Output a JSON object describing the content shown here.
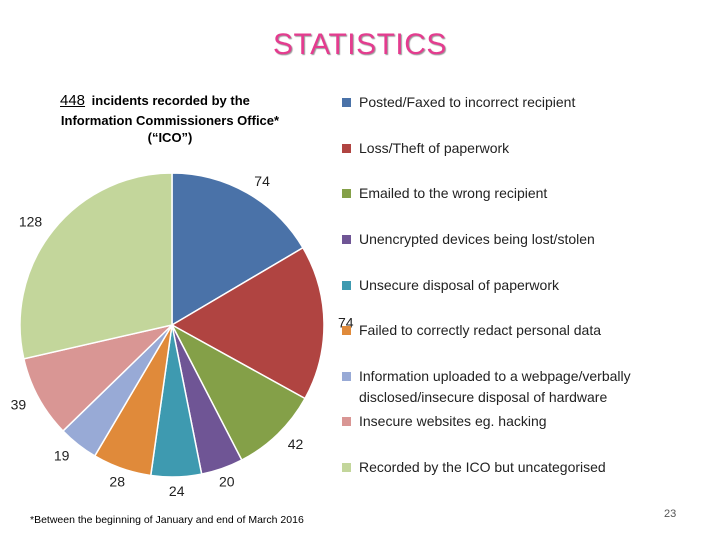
{
  "title": "STATISTICS",
  "subtitle": {
    "count": "448",
    "line1": "incidents recorded by the",
    "line2": "Information Commissioners Office*",
    "line3": "(“ICO”)"
  },
  "footnote": "*Between the beginning of January and end of March 2016",
  "page_number": "23",
  "chart_data": {
    "type": "pie",
    "start_angle_deg": 0,
    "direction": "clockwise",
    "slices": [
      {
        "label": "Posted/Faxed to incorrect recipient",
        "value": 74,
        "color": "#4a72a8"
      },
      {
        "label": "Loss/Theft of paperwork",
        "value": 74,
        "color": "#b04441"
      },
      {
        "label": "Emailed to the wrong recipient",
        "value": 42,
        "color": "#84a048"
      },
      {
        "label": "Unencrypted devices being lost/stolen",
        "value": 20,
        "color": "#6f5595"
      },
      {
        "label": "Unsecure disposal of paperwork",
        "value": 24,
        "color": "#3e9ab0"
      },
      {
        "label": "Failed to correctly redact personal data",
        "value": 28,
        "color": "#e08a3a"
      },
      {
        "label": "Information uploaded to a webpage/verbally disclosed/insecure disposal of hardware",
        "value": 19,
        "color": "#98aad6"
      },
      {
        "label": "Insecure websites eg. hacking",
        "value": 39,
        "color": "#d99694"
      },
      {
        "label": "Recorded by the ICO but uncategorised",
        "value": 128,
        "color": "#c3d69b"
      }
    ]
  }
}
